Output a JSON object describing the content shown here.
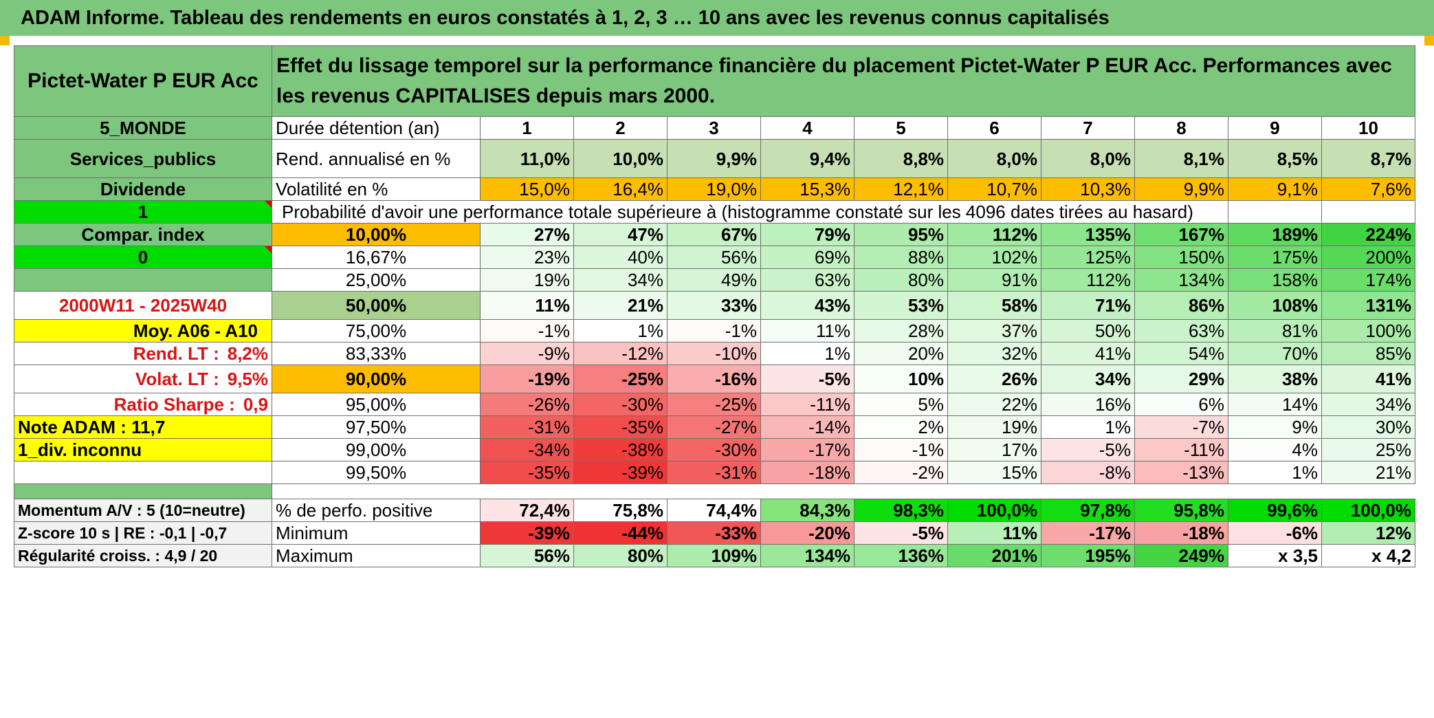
{
  "title": "ADAM Informe. Tableau des rendements en euros constatés à 1, 2, 3 … 10 ans avec les revenus connus capitalisés",
  "fund_name": "Pictet-Water P EUR Acc",
  "header_text": "Effet du lissage temporel sur la performance financière du placement Pictet-Water P EUR Acc. Performances avec les revenus CAPITALISES depuis mars 2000.",
  "left": {
    "zone": "5_MONDE",
    "sector": "Services_publics",
    "dividend_label": "Dividende",
    "dividend_value": "1",
    "compar_index": "Compar. index",
    "compar_value": "0",
    "period": "2000W11 - 2025W40",
    "moy": "Moy. A06 - A10",
    "rend_lt_label": "Rend. LT :",
    "rend_lt_value": "8,2%",
    "volat_lt_label": "Volat. LT :",
    "volat_lt_value": "9,5%",
    "sharpe_label": "Ratio Sharpe :",
    "sharpe_value": "0,9",
    "note": "Note ADAM : 11,7",
    "div": "1_div. inconnu",
    "momentum": "Momentum A/V : 5 (10=neutre)",
    "zscore": "Z-score 10 s | RE : -0,1 | -0,7",
    "regularite": "Régularité croiss. : 4,9 / 20"
  },
  "duration_label": "Durée détention (an)",
  "years": [
    "1",
    "2",
    "3",
    "4",
    "5",
    "6",
    "7",
    "8",
    "9",
    "10"
  ],
  "rend_label": "Rend. annualisé en %",
  "rend": [
    "11,0%",
    "10,0%",
    "9,9%",
    "9,4%",
    "8,8%",
    "8,0%",
    "8,0%",
    "8,1%",
    "8,5%",
    "8,7%"
  ],
  "vol_label": "Volatilité en %",
  "vol": [
    "15,0%",
    "16,4%",
    "19,0%",
    "15,3%",
    "12,1%",
    "10,7%",
    "10,3%",
    "9,9%",
    "9,1%",
    "7,6%"
  ],
  "prob_label": "Probabilité d'avoir une performance totale supérieure à (histogramme constaté sur les 4096 dates tirées au hasard)",
  "pct_rows": [
    {
      "p": "10,00%",
      "v": [
        "27%",
        "47%",
        "67%",
        "79%",
        "95%",
        "112%",
        "135%",
        "167%",
        "189%",
        "224%"
      ]
    },
    {
      "p": "16,67%",
      "v": [
        "23%",
        "40%",
        "56%",
        "69%",
        "88%",
        "102%",
        "125%",
        "150%",
        "175%",
        "200%"
      ]
    },
    {
      "p": "25,00%",
      "v": [
        "19%",
        "34%",
        "49%",
        "63%",
        "80%",
        "91%",
        "112%",
        "134%",
        "158%",
        "174%"
      ]
    },
    {
      "p": "50,00%",
      "v": [
        "11%",
        "21%",
        "33%",
        "43%",
        "53%",
        "58%",
        "71%",
        "86%",
        "108%",
        "131%"
      ]
    },
    {
      "p": "75,00%",
      "v": [
        "-1%",
        "1%",
        "-1%",
        "11%",
        "28%",
        "37%",
        "50%",
        "63%",
        "81%",
        "100%"
      ]
    },
    {
      "p": "83,33%",
      "v": [
        "-9%",
        "-12%",
        "-10%",
        "1%",
        "20%",
        "32%",
        "41%",
        "54%",
        "70%",
        "85%"
      ]
    },
    {
      "p": "90,00%",
      "v": [
        "-19%",
        "-25%",
        "-16%",
        "-5%",
        "10%",
        "26%",
        "34%",
        "29%",
        "38%",
        "41%"
      ]
    },
    {
      "p": "95,00%",
      "v": [
        "-26%",
        "-30%",
        "-25%",
        "-11%",
        "5%",
        "22%",
        "16%",
        "6%",
        "14%",
        "34%"
      ]
    },
    {
      "p": "97,50%",
      "v": [
        "-31%",
        "-35%",
        "-27%",
        "-14%",
        "2%",
        "19%",
        "1%",
        "-7%",
        "9%",
        "30%"
      ]
    },
    {
      "p": "99,00%",
      "v": [
        "-34%",
        "-38%",
        "-30%",
        "-17%",
        "-1%",
        "17%",
        "-5%",
        "-11%",
        "4%",
        "25%"
      ]
    },
    {
      "p": "99,50%",
      "v": [
        "-35%",
        "-39%",
        "-31%",
        "-18%",
        "-2%",
        "15%",
        "-8%",
        "-13%",
        "1%",
        "21%"
      ]
    }
  ],
  "pos_label": "% de perfo. positive",
  "pos": [
    "72,4%",
    "75,8%",
    "74,4%",
    "84,3%",
    "98,3%",
    "100,0%",
    "97,8%",
    "95,8%",
    "99,6%",
    "100,0%"
  ],
  "min_label": "Minimum",
  "min": [
    "-39%",
    "-44%",
    "-33%",
    "-20%",
    "-5%",
    "11%",
    "-17%",
    "-18%",
    "-6%",
    "12%"
  ],
  "max_label": "Maximum",
  "max": [
    "56%",
    "80%",
    "109%",
    "134%",
    "136%",
    "201%",
    "195%",
    "249%",
    "x 3,5",
    "x 4,2"
  ],
  "colors": {
    "header_green": "#7dc67d",
    "bright_green": "#00dc00",
    "orange": "#ffbd00",
    "yellow": "#ffff00",
    "label_red": "#d91414",
    "pale_green": "#c6e0b4"
  }
}
